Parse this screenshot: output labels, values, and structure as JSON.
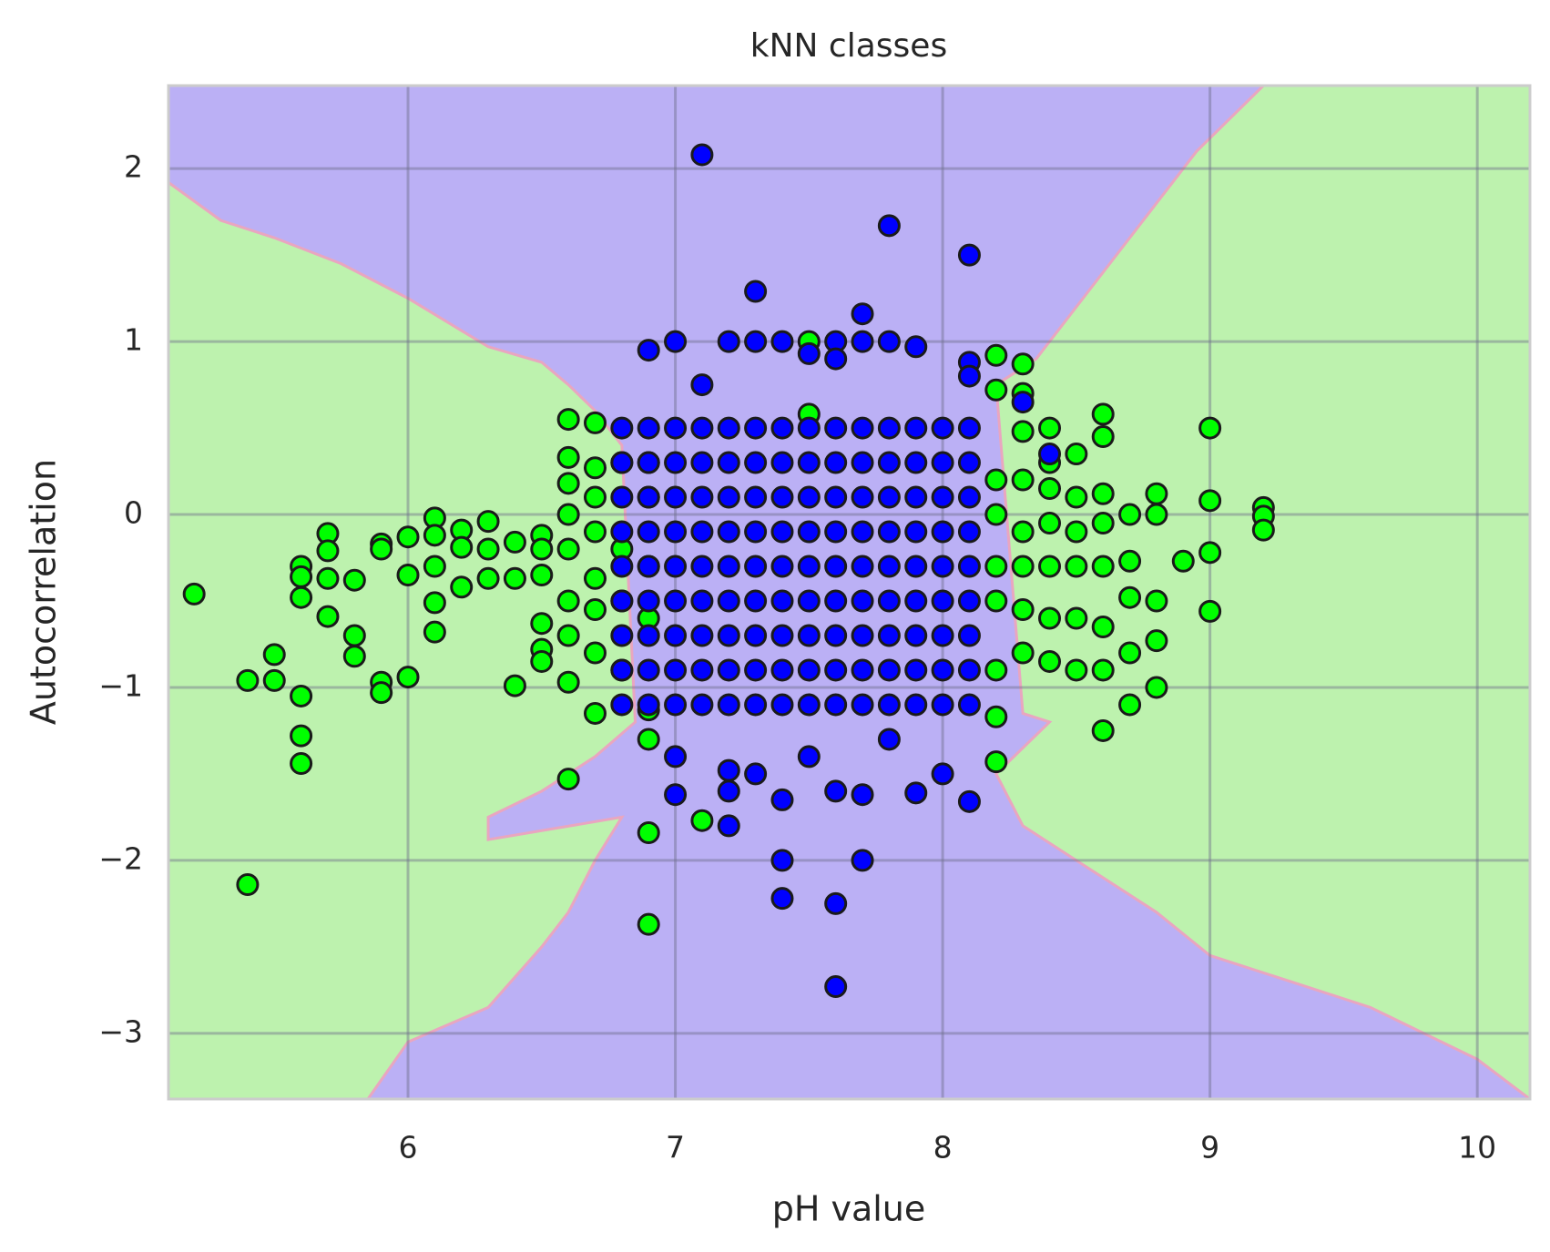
{
  "chart_data": {
    "type": "scatter",
    "title": "kNN classes",
    "x_label": "pH value",
    "y_label": "Autocorrelation",
    "xlim": [
      5.104,
      10.197
    ],
    "ylim": [
      -3.38,
      2.48
    ],
    "xticks": [
      6,
      7,
      8,
      9,
      10
    ],
    "yticks": [
      {
        "value": -3,
        "label": "−3"
      },
      {
        "value": -2,
        "label": "−2"
      },
      {
        "value": -1,
        "label": "−1"
      },
      0,
      1,
      2
    ],
    "grid": true,
    "background_color": "#bbb0f5",
    "regions": [
      {
        "color": "#bdf2ae",
        "x": [
          5.104,
          5.3,
          5.5,
          5.75,
          6.0,
          6.3,
          6.5,
          6.6,
          6.7,
          6.8,
          6.85,
          6.7,
          6.5,
          6.3,
          6.3,
          6.8,
          6.7,
          6.6,
          6.5,
          6.3,
          6.0,
          5.85,
          5.104
        ],
        "y": [
          1.92,
          1.7,
          1.6,
          1.45,
          1.25,
          0.97,
          0.88,
          0.75,
          0.6,
          0.4,
          -1.2,
          -1.4,
          -1.6,
          -1.75,
          -1.88,
          -1.75,
          -2.0,
          -2.3,
          -2.5,
          -2.85,
          -3.05,
          -3.38,
          -3.38
        ]
      },
      {
        "color": "#bdf2ae",
        "x": [
          9.2,
          8.95,
          8.7,
          8.5,
          8.35,
          8.2,
          8.3,
          8.4,
          8.2,
          8.3,
          8.6,
          8.8,
          9.0,
          9.3,
          9.6,
          10.0,
          10.197,
          10.197
        ],
        "y": [
          2.48,
          2.1,
          1.6,
          1.2,
          0.9,
          0.75,
          -1.15,
          -1.2,
          -1.5,
          -1.8,
          -2.1,
          -2.3,
          -2.55,
          -2.7,
          -2.85,
          -3.15,
          -3.38,
          2.48
        ]
      }
    ],
    "series": [
      {
        "color": "#00ff00",
        "x": [
          5.2,
          5.4,
          5.4,
          5.5,
          5.5,
          5.6,
          5.6,
          5.6,
          5.6,
          5.6,
          5.6,
          5.7,
          5.7,
          5.7,
          5.7,
          5.8,
          5.8,
          5.8,
          5.9,
          5.9,
          5.9,
          5.9,
          6.0,
          6.0,
          6.0,
          6.1,
          6.1,
          6.1,
          6.1,
          6.1,
          6.2,
          6.2,
          6.2,
          6.3,
          6.3,
          6.3,
          6.4,
          6.4,
          6.4,
          6.5,
          6.5,
          6.5,
          6.5,
          6.5,
          6.5,
          6.6,
          6.6,
          6.6,
          6.6,
          6.6,
          6.6,
          6.6,
          6.6,
          6.6,
          6.7,
          6.7,
          6.7,
          6.7,
          6.7,
          6.7,
          6.7,
          6.7,
          6.8,
          6.8,
          6.8,
          6.8,
          6.9,
          6.9,
          6.9,
          6.9,
          6.9,
          6.9,
          6.9,
          6.9,
          7.1,
          7.5,
          7.5,
          8.2,
          8.2,
          8.2,
          8.2,
          8.2,
          8.2,
          8.2,
          8.2,
          8.2,
          8.3,
          8.3,
          8.3,
          8.3,
          8.3,
          8.3,
          8.3,
          8.3,
          8.4,
          8.4,
          8.4,
          8.4,
          8.4,
          8.4,
          8.4,
          8.5,
          8.5,
          8.5,
          8.5,
          8.5,
          8.5,
          8.6,
          8.6,
          8.6,
          8.6,
          8.6,
          8.6,
          8.6,
          8.6,
          8.7,
          8.7,
          8.7,
          8.7,
          8.7,
          8.8,
          8.8,
          8.8,
          8.8,
          8.8,
          8.9,
          9.0,
          9.0,
          9.0,
          9.0,
          9.2,
          9.2,
          9.2
        ],
        "values": [
          -0.46,
          -0.96,
          -2.14,
          -0.81,
          -0.96,
          -0.3,
          -0.36,
          -0.48,
          -1.05,
          -1.28,
          -1.44,
          -0.11,
          -0.21,
          -0.37,
          -0.59,
          -0.38,
          -0.7,
          -0.82,
          -0.17,
          -0.2,
          -0.97,
          -1.03,
          -0.13,
          -0.35,
          -0.94,
          -0.02,
          -0.12,
          -0.3,
          -0.51,
          -0.68,
          -0.09,
          -0.19,
          -0.42,
          -0.04,
          -0.2,
          -0.37,
          -0.16,
          -0.37,
          -0.99,
          -0.12,
          -0.2,
          -0.35,
          -0.63,
          -0.78,
          -0.85,
          0.55,
          0.33,
          0.18,
          0,
          -0.2,
          -0.5,
          -0.7,
          -0.97,
          -1.53,
          0.53,
          0.27,
          0.1,
          -0.1,
          -0.37,
          -0.55,
          -0.8,
          -1.15,
          0.3,
          -0.2,
          -0.5,
          -0.9,
          0.3,
          0.1,
          -0.3,
          -0.6,
          -1.13,
          -1.3,
          -1.84,
          -2.37,
          -1.77,
          1.0,
          0.58,
          0.92,
          0.72,
          0.2,
          0,
          -0.3,
          -0.5,
          -0.9,
          -1.17,
          -1.43,
          0.87,
          0.7,
          0.48,
          0.2,
          -0.1,
          -0.3,
          -0.55,
          -0.8,
          0.5,
          0.3,
          0.15,
          -0.05,
          -0.3,
          -0.6,
          -0.85,
          0.35,
          0.1,
          -0.1,
          -0.3,
          -0.6,
          -0.9,
          0.58,
          0.45,
          0.12,
          -0.05,
          -0.3,
          -0.65,
          -0.9,
          -1.25,
          0,
          -0.27,
          -0.48,
          -0.8,
          -1.1,
          0.12,
          0,
          -0.5,
          -0.73,
          -1.0,
          -0.27,
          0.5,
          0.08,
          -0.22,
          -0.56,
          0.04,
          -0.01,
          -0.09
        ]
      },
      {
        "color": "#0000ff",
        "x": [
          7.1,
          7.8,
          8.1,
          7.3,
          7.7,
          6.9,
          7.0,
          7.2,
          7.3,
          7.4,
          7.6,
          7.7,
          7.8,
          7.9,
          7.1,
          7.6,
          8.1,
          8.1,
          7.5,
          8.3,
          8.4,
          7.0,
          7.0,
          7.2,
          7.2,
          7.3,
          7.4,
          7.4,
          7.4,
          7.6,
          7.6,
          7.6,
          7.7,
          7.7,
          7.9,
          8.0,
          8.1,
          7.2,
          7.5,
          7.8,
          6.8,
          6.8,
          6.8,
          6.8,
          6.8,
          6.8,
          6.8,
          6.8,
          6.8,
          6.9,
          6.9,
          6.9,
          6.9,
          6.9,
          6.9,
          6.9,
          6.9,
          6.9,
          7.0,
          7.0,
          7.0,
          7.0,
          7.0,
          7.0,
          7.0,
          7.0,
          7.0,
          7.1,
          7.1,
          7.1,
          7.1,
          7.1,
          7.1,
          7.1,
          7.1,
          7.1,
          7.2,
          7.2,
          7.2,
          7.2,
          7.2,
          7.2,
          7.2,
          7.2,
          7.2,
          7.3,
          7.3,
          7.3,
          7.3,
          7.3,
          7.3,
          7.3,
          7.3,
          7.3,
          7.4,
          7.4,
          7.4,
          7.4,
          7.4,
          7.4,
          7.4,
          7.4,
          7.4,
          7.5,
          7.5,
          7.5,
          7.5,
          7.5,
          7.5,
          7.5,
          7.5,
          7.5,
          7.6,
          7.6,
          7.6,
          7.6,
          7.6,
          7.6,
          7.6,
          7.6,
          7.6,
          7.7,
          7.7,
          7.7,
          7.7,
          7.7,
          7.7,
          7.7,
          7.7,
          7.7,
          7.8,
          7.8,
          7.8,
          7.8,
          7.8,
          7.8,
          7.8,
          7.8,
          7.8,
          7.9,
          7.9,
          7.9,
          7.9,
          7.9,
          7.9,
          7.9,
          7.9,
          7.9,
          8.0,
          8.0,
          8.0,
          8.0,
          8.0,
          8.0,
          8.0,
          8.0,
          8.0,
          8.1,
          8.1,
          8.1,
          8.1,
          8.1,
          8.1,
          8.1,
          8.1,
          8.1
        ],
        "values": [
          2.08,
          1.67,
          1.5,
          1.29,
          1.16,
          0.95,
          1.0,
          1.0,
          1.0,
          1.0,
          1.0,
          1.0,
          1.0,
          0.97,
          0.75,
          0.9,
          0.88,
          0.8,
          0.93,
          0.65,
          0.35,
          -1.4,
          -1.62,
          -1.48,
          -1.8,
          -1.5,
          -1.65,
          -2.0,
          -2.22,
          -1.6,
          -2.25,
          -2.73,
          -1.62,
          -2.0,
          -1.61,
          -1.5,
          -1.66,
          -1.6,
          -1.4,
          -1.3,
          -1.1,
          -0.9,
          -0.7,
          -0.5,
          -0.3,
          -0.1,
          0.1,
          0.3,
          0.5,
          -1.1,
          -0.9,
          -0.7,
          -0.5,
          -0.3,
          -0.1,
          0.1,
          0.3,
          0.5,
          -1.1,
          -0.9,
          -0.7,
          -0.5,
          -0.3,
          -0.1,
          0.1,
          0.3,
          0.5,
          -1.1,
          -0.9,
          -0.7,
          -0.5,
          -0.3,
          -0.1,
          0.1,
          0.3,
          0.5,
          -1.1,
          -0.9,
          -0.7,
          -0.5,
          -0.3,
          -0.1,
          0.1,
          0.3,
          0.5,
          -1.1,
          -0.9,
          -0.7,
          -0.5,
          -0.3,
          -0.1,
          0.1,
          0.3,
          0.5,
          -1.1,
          -0.9,
          -0.7,
          -0.5,
          -0.3,
          -0.1,
          0.1,
          0.3,
          0.5,
          -1.1,
          -0.9,
          -0.7,
          -0.5,
          -0.3,
          -0.1,
          0.1,
          0.3,
          0.5,
          -1.1,
          -0.9,
          -0.7,
          -0.5,
          -0.3,
          -0.1,
          0.1,
          0.3,
          0.5,
          -1.1,
          -0.9,
          -0.7,
          -0.5,
          -0.3,
          -0.1,
          0.1,
          0.3,
          0.5,
          -1.1,
          -0.9,
          -0.7,
          -0.5,
          -0.3,
          -0.1,
          0.1,
          0.3,
          0.5,
          -1.1,
          -0.9,
          -0.7,
          -0.5,
          -0.3,
          -0.1,
          0.1,
          0.3,
          0.5,
          -1.1,
          -0.9,
          -0.7,
          -0.5,
          -0.3,
          -0.1,
          0.1,
          0.3,
          0.5,
          -1.1,
          -0.9,
          -0.7,
          -0.5,
          -0.3,
          -0.1,
          0.1,
          0.3,
          0.5
        ]
      }
    ]
  }
}
